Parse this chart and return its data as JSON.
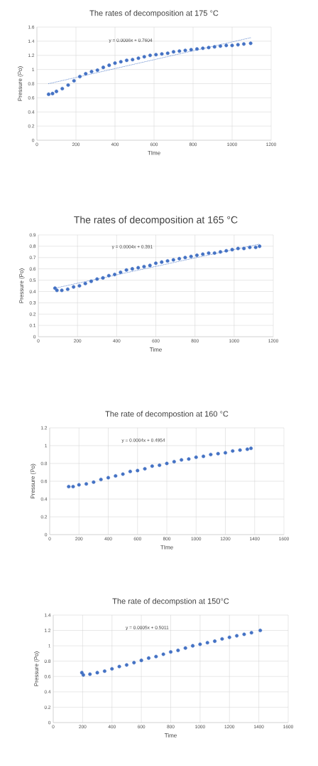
{
  "chart_data": [
    {
      "type": "scatter",
      "title": "The rates of decomposition at 175 °C",
      "xlabel": "TIme",
      "ylabel": "Pressure (Po)",
      "xlim": [
        0,
        1200
      ],
      "ylim": [
        0,
        1.6
      ],
      "xticks": [
        0,
        200,
        400,
        600,
        800,
        1000,
        1200
      ],
      "yticks": [
        0,
        0.2,
        0.4,
        0.6,
        0.8,
        1,
        1.2,
        1.4,
        1.6
      ],
      "grid": true,
      "annotations": [
        "y = 0.0006x + 0.7604"
      ],
      "series": [
        {
          "color": "#4472c4",
          "x": [
            60,
            80,
            100,
            130,
            160,
            190,
            220,
            250,
            280,
            310,
            340,
            370,
            400,
            430,
            460,
            490,
            520,
            550,
            580,
            610,
            640,
            670,
            700,
            730,
            760,
            790,
            820,
            850,
            880,
            910,
            940,
            970,
            1000,
            1030,
            1060,
            1095
          ],
          "values": [
            0.65,
            0.66,
            0.69,
            0.73,
            0.78,
            0.84,
            0.9,
            0.94,
            0.97,
            0.99,
            1.03,
            1.06,
            1.09,
            1.11,
            1.13,
            1.14,
            1.16,
            1.18,
            1.2,
            1.21,
            1.22,
            1.23,
            1.25,
            1.26,
            1.27,
            1.28,
            1.29,
            1.3,
            1.31,
            1.32,
            1.33,
            1.34,
            1.34,
            1.35,
            1.36,
            1.37
          ]
        },
        {
          "type": "line",
          "color": "#4472c4",
          "line_style": "dotted",
          "x": [
            60,
            1095
          ],
          "values": [
            0.8,
            1.45
          ]
        }
      ]
    },
    {
      "type": "scatter",
      "title": "The rates of decomposition at 165 °C",
      "xlabel": "Time",
      "ylabel": "Pressure (Po)",
      "xlim": [
        0,
        1200
      ],
      "ylim": [
        0,
        0.9
      ],
      "xticks": [
        0,
        200,
        400,
        600,
        800,
        1000,
        1200
      ],
      "yticks": [
        0,
        0.1,
        0.2,
        0.3,
        0.4,
        0.5,
        0.6,
        0.7,
        0.8,
        0.9
      ],
      "grid": true,
      "annotations": [
        "y = 0.0004x + 0.391"
      ],
      "series": [
        {
          "color": "#4472c4",
          "x": [
            85,
            95,
            120,
            150,
            180,
            210,
            240,
            270,
            300,
            330,
            360,
            390,
            420,
            450,
            480,
            510,
            540,
            570,
            600,
            630,
            660,
            690,
            720,
            750,
            780,
            810,
            840,
            870,
            900,
            930,
            960,
            990,
            1020,
            1050,
            1080,
            1110,
            1130
          ],
          "values": [
            0.43,
            0.41,
            0.41,
            0.42,
            0.44,
            0.45,
            0.47,
            0.49,
            0.51,
            0.52,
            0.54,
            0.55,
            0.57,
            0.59,
            0.6,
            0.61,
            0.62,
            0.63,
            0.65,
            0.66,
            0.67,
            0.68,
            0.69,
            0.7,
            0.71,
            0.72,
            0.73,
            0.74,
            0.74,
            0.75,
            0.76,
            0.77,
            0.78,
            0.78,
            0.79,
            0.79,
            0.8
          ]
        },
        {
          "type": "line",
          "color": "#4472c4",
          "line_style": "dotted",
          "x": [
            85,
            1130
          ],
          "values": [
            0.43,
            0.82
          ]
        }
      ]
    },
    {
      "type": "scatter",
      "title": "The rate of decompostion at 160 °C",
      "xlabel": "TIme",
      "ylabel": "Pressure (Po)",
      "xlim": [
        0,
        1600
      ],
      "ylim": [
        0,
        1.2
      ],
      "xticks": [
        0,
        200,
        400,
        600,
        800,
        1000,
        1200,
        1400,
        1600
      ],
      "yticks": [
        0,
        0.2,
        0.4,
        0.6,
        0.8,
        1,
        1.2
      ],
      "grid": true,
      "annotations": [
        "y = 0.0004x + 0.4954"
      ],
      "series": [
        {
          "color": "#4472c4",
          "x": [
            130,
            160,
            200,
            250,
            300,
            350,
            400,
            450,
            500,
            550,
            600,
            650,
            700,
            750,
            800,
            850,
            900,
            950,
            1000,
            1050,
            1100,
            1150,
            1200,
            1250,
            1300,
            1350,
            1375
          ],
          "values": [
            0.54,
            0.54,
            0.56,
            0.57,
            0.59,
            0.62,
            0.64,
            0.66,
            0.68,
            0.71,
            0.72,
            0.74,
            0.77,
            0.78,
            0.8,
            0.82,
            0.84,
            0.85,
            0.87,
            0.88,
            0.9,
            0.91,
            0.92,
            0.94,
            0.95,
            0.96,
            0.97
          ]
        }
      ]
    },
    {
      "type": "scatter",
      "title": "The rate of decompstion at 150°C",
      "xlabel": "Time",
      "ylabel": "Pressure (Po)",
      "xlim": [
        0,
        1600
      ],
      "ylim": [
        0,
        1.4
      ],
      "xticks": [
        0,
        200,
        400,
        600,
        800,
        1000,
        1200,
        1400,
        1600
      ],
      "yticks": [
        0,
        0.2,
        0.4,
        0.6,
        0.8,
        1,
        1.2,
        1.4
      ],
      "grid": true,
      "annotations": [
        "y = 0.0005x + 0.5011"
      ],
      "series": [
        {
          "color": "#4472c4",
          "x": [
            195,
            205,
            250,
            300,
            350,
            400,
            450,
            500,
            550,
            600,
            650,
            700,
            750,
            800,
            850,
            900,
            950,
            1000,
            1050,
            1100,
            1150,
            1200,
            1250,
            1300,
            1350,
            1410
          ],
          "values": [
            0.65,
            0.62,
            0.63,
            0.65,
            0.67,
            0.7,
            0.73,
            0.75,
            0.78,
            0.81,
            0.84,
            0.86,
            0.89,
            0.92,
            0.94,
            0.97,
            1.0,
            1.02,
            1.04,
            1.06,
            1.09,
            1.11,
            1.13,
            1.15,
            1.17,
            1.2
          ]
        }
      ]
    }
  ]
}
